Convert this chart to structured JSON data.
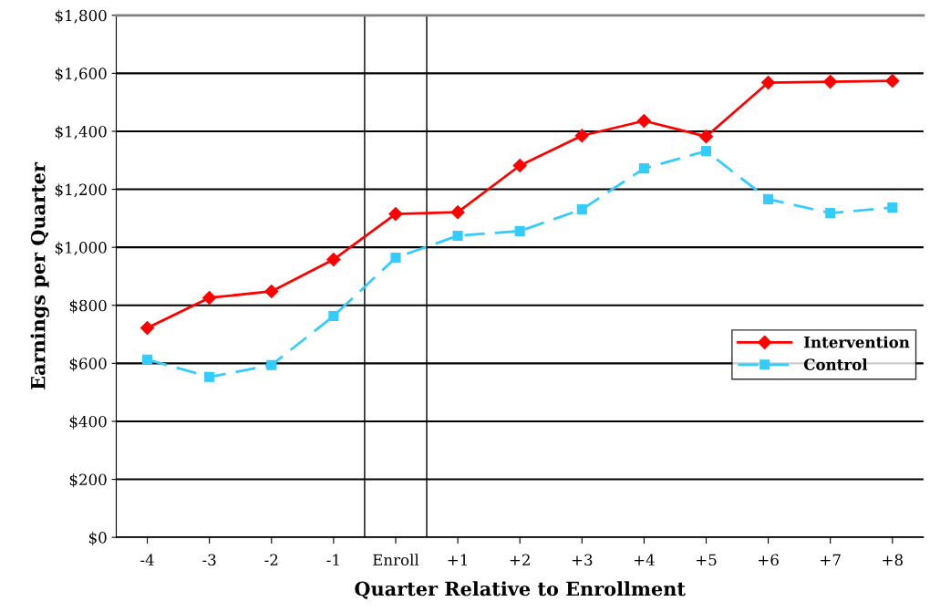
{
  "chart_data": {
    "type": "line",
    "xlabel": "Quarter Relative to Enrollment",
    "ylabel": "Earnings per Quarter",
    "x": [
      -4,
      -3,
      -2,
      -1,
      0,
      1,
      2,
      3,
      4,
      5,
      6,
      7,
      8
    ],
    "series": [
      {
        "name": "Intervention",
        "color": "#ff0000",
        "marker": "diamond",
        "line_style": "solid",
        "values": [
          722,
          826,
          848,
          958,
          1115,
          1121,
          1282,
          1385,
          1436,
          1382,
          1568,
          1571,
          1574
        ]
      },
      {
        "name": "Control",
        "color": "#33ccff",
        "marker": "square",
        "line_style": "dashed",
        "values": [
          613,
          553,
          594,
          763,
          964,
          1040,
          1056,
          1131,
          1272,
          1332,
          1166,
          1118,
          1137
        ]
      }
    ],
    "xlim": [
      -4.5,
      8.5
    ],
    "xticks": [
      {
        "value": -4,
        "label": "-4"
      },
      {
        "value": -3,
        "label": "-3"
      },
      {
        "value": -2,
        "label": "-2"
      },
      {
        "value": -1,
        "label": "-1"
      },
      {
        "value": 0,
        "label": "Enroll"
      },
      {
        "value": 1,
        "label": "+1"
      },
      {
        "value": 2,
        "label": "+2"
      },
      {
        "value": 3,
        "label": "+3"
      },
      {
        "value": 4,
        "label": "+4"
      },
      {
        "value": 5,
        "label": "+5"
      },
      {
        "value": 6,
        "label": "+6"
      },
      {
        "value": 7,
        "label": "+7"
      },
      {
        "value": 8,
        "label": "+8"
      }
    ],
    "ylim": [
      0,
      1800
    ],
    "yticks": [
      {
        "value": 0,
        "label": "$0"
      },
      {
        "value": 200,
        "label": "$200"
      },
      {
        "value": 400,
        "label": "$400"
      },
      {
        "value": 600,
        "label": "$600"
      },
      {
        "value": 800,
        "label": "$800"
      },
      {
        "value": 1000,
        "label": "$1,000"
      },
      {
        "value": 1200,
        "label": "$1,200"
      },
      {
        "value": 1400,
        "label": "$1,400"
      },
      {
        "value": 1600,
        "label": "$1,600"
      },
      {
        "value": 1800,
        "label": "$1,800"
      }
    ],
    "ref_lines": [
      {
        "axis": "x",
        "value": -0.5,
        "color": "#000000"
      },
      {
        "axis": "x",
        "value": 0.5,
        "color": "#000000"
      }
    ],
    "grid": "y",
    "legend": "right"
  }
}
